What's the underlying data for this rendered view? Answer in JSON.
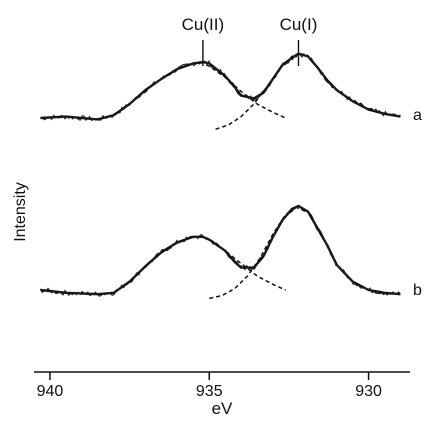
{
  "chart_data": {
    "type": "line",
    "xlabel": "eV",
    "ylabel": "Intensity",
    "x_reversed": true,
    "xlim": [
      940.5,
      928.7
    ],
    "xticks": [
      940,
      935,
      930
    ],
    "xtick_labels": [
      "940",
      "935",
      "930"
    ],
    "grid": false,
    "annotations": [
      {
        "text": "Cu(II)",
        "x": 935.2
      },
      {
        "text": "Cu(I)",
        "x": 932.2
      }
    ],
    "series": [
      {
        "name": "a",
        "x": [
          940.3,
          939.5,
          938.5,
          938.0,
          937.5,
          937.0,
          936.5,
          936.0,
          935.5,
          935.2,
          935.0,
          934.5,
          934.2,
          934.0,
          933.6,
          933.3,
          933.0,
          932.7,
          932.4,
          932.2,
          931.9,
          931.6,
          931.3,
          931.0,
          930.5,
          930.0,
          929.5,
          929.0
        ],
        "y": [
          0.0,
          0.01,
          -0.01,
          0.02,
          0.1,
          0.2,
          0.28,
          0.35,
          0.39,
          0.4,
          0.39,
          0.3,
          0.22,
          0.16,
          0.14,
          0.18,
          0.28,
          0.38,
          0.43,
          0.46,
          0.44,
          0.36,
          0.27,
          0.2,
          0.12,
          0.06,
          0.03,
          0.01
        ]
      },
      {
        "name": "b",
        "x": [
          940.3,
          939.5,
          938.5,
          938.0,
          937.5,
          937.0,
          936.5,
          936.0,
          935.5,
          935.2,
          935.0,
          934.5,
          934.2,
          934.0,
          933.6,
          933.3,
          933.0,
          932.7,
          932.4,
          932.2,
          931.9,
          931.6,
          931.3,
          931.0,
          930.5,
          930.0,
          929.5,
          929.0
        ],
        "y": [
          0.0,
          -0.02,
          -0.03,
          -0.02,
          0.06,
          0.17,
          0.27,
          0.34,
          0.38,
          0.38,
          0.36,
          0.28,
          0.2,
          0.16,
          0.16,
          0.24,
          0.38,
          0.5,
          0.58,
          0.6,
          0.56,
          0.44,
          0.32,
          0.18,
          0.06,
          0.0,
          -0.02,
          -0.03
        ]
      }
    ],
    "fit_components": [
      {
        "series": "a",
        "x": [
          935.3,
          935.0,
          934.5,
          934.0,
          933.5,
          933.0,
          932.6
        ],
        "y": [
          0.4,
          0.37,
          0.29,
          0.19,
          0.1,
          0.04,
          0.0
        ]
      },
      {
        "series": "a",
        "x": [
          934.8,
          934.4,
          934.0,
          933.6,
          933.2,
          932.8,
          932.4,
          932.2
        ],
        "y": [
          -0.08,
          -0.05,
          0.01,
          0.1,
          0.22,
          0.35,
          0.44,
          0.46
        ]
      },
      {
        "series": "b",
        "x": [
          935.2,
          934.9,
          934.5,
          934.0,
          933.5,
          933.0,
          932.6
        ],
        "y": [
          0.38,
          0.35,
          0.28,
          0.19,
          0.1,
          0.04,
          0.0
        ]
      },
      {
        "series": "b",
        "x": [
          935.0,
          934.6,
          934.2,
          933.8,
          933.4,
          933.0,
          932.6,
          932.2
        ],
        "y": [
          -0.06,
          -0.04,
          0.01,
          0.1,
          0.23,
          0.4,
          0.54,
          0.6
        ]
      }
    ]
  }
}
